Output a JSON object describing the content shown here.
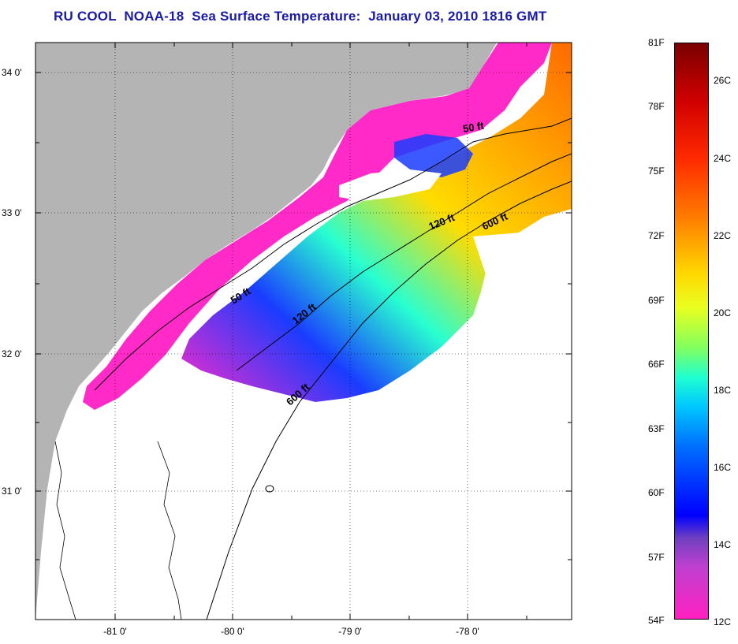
{
  "title": "RU COOL  NOAA-18  Sea Surface Temperature:  January 03, 2010 1816 GMT",
  "latitude_labels": [
    "34 0'",
    "33 0'",
    "32 0'",
    "31 0'"
  ],
  "longitude_labels": [
    "-81 0'",
    "-80 0'",
    "-79 0'",
    "-78 0'"
  ],
  "contour_labels": [
    "50 ft",
    "120 ft",
    "600 ft",
    "50 ft",
    "120 ft",
    "600 ft"
  ],
  "colorbar": {
    "fahrenheit": [
      "81F",
      "78F",
      "75F",
      "72F",
      "69F",
      "66F",
      "63F",
      "60F",
      "57F",
      "54F"
    ],
    "celsius": [
      "26C",
      "24C",
      "22C",
      "20C",
      "18C",
      "16C",
      "14C",
      "12C"
    ]
  },
  "colors": {
    "land": "#b4b4b4",
    "title": "#1a1aa6",
    "cold_water": "#ff2ac8",
    "cool_water": "#1a3cff",
    "mid_water": "#28ffd0",
    "warm_water": "#ffdc00",
    "hot_water": "#ff6a00"
  }
}
